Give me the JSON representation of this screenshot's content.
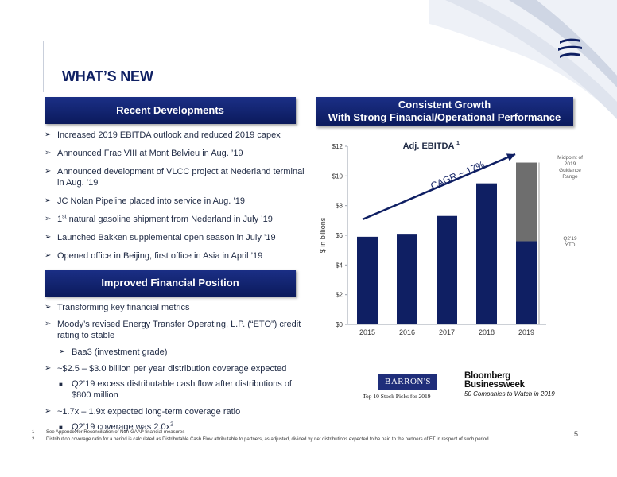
{
  "header": {
    "title": "WHAT’S NEW"
  },
  "recent": {
    "heading": "Recent Developments",
    "items": [
      "Increased 2019 EBITDA outlook and reduced 2019 capex",
      "Announced Frac VIII at Mont Belvieu in Aug. ’19",
      "Announced development of VLCC project at Nederland terminal in Aug. ’19",
      "JC Nolan Pipeline placed into service in Aug. ’19",
      "natural gasoline shipment from Nederland in July ’19",
      "Launched Bakken supplemental open season in July ’19",
      "Opened office in Beijing, first office in Asia in April ’19"
    ],
    "item5_prefix": "1",
    "item5_sup": "st"
  },
  "financial": {
    "heading": "Improved Financial Position",
    "items": [
      "Transforming key financial metrics",
      "Moody’s revised Energy Transfer Operating, L.P. (“ETO”) credit rating to stable",
      "Baa3 (investment grade)",
      "~$2.5 – $3.0 billion per year distribution coverage expected",
      "Q2’19 excess distributable cash flow after distributions of $800 million",
      "~1.7x – 1.9x expected long-term coverage ratio",
      "Q2’19 coverage was 2.0x"
    ],
    "last_sup": "2"
  },
  "growth": {
    "heading_line1": "Consistent Growth",
    "heading_line2": "With Strong Financial/Operational Performance"
  },
  "chart_data": {
    "type": "bar",
    "title": "Adj. EBITDA",
    "title_sup": "1",
    "ylabel": "$ in billions",
    "ylim": [
      0,
      12
    ],
    "yticks": [
      "$0",
      "$2",
      "$4",
      "$6",
      "$8",
      "$10",
      "$12"
    ],
    "categories": [
      "2015",
      "2016",
      "2017",
      "2018",
      "2019"
    ],
    "series": [
      {
        "name": "Q2’19 YTD",
        "values": [
          5.9,
          6.1,
          7.3,
          9.5,
          5.6
        ],
        "color": "#0f1f63"
      },
      {
        "name": "Midpoint of 2019 Guidance Range",
        "values": [
          0,
          0,
          0,
          0,
          5.3
        ],
        "color": "#6e6e6e"
      }
    ],
    "annotation": "CAGR ~ 17%",
    "label_midpoint": [
      "Midpoint of",
      "2019",
      "Guidance",
      "Range"
    ],
    "label_ytd": [
      "Q2’19",
      "YTD"
    ],
    "grid": false
  },
  "badges": {
    "barrons": "BARRON'S",
    "barrons_sub": "Top 10 Stock Picks for 2019",
    "bloomberg_line1": "Bloomberg",
    "bloomberg_line2": "Businessweek",
    "bloomberg_sub": "50 Companies to Watch in 2019"
  },
  "footnotes": [
    {
      "num": "1",
      "text": "See Appendix for Reconciliation of Non-GAAP financial measures"
    },
    {
      "num": "2",
      "text": "Distribution coverage ratio for a period is calculated as Distributable Cash Flow attributable to partners, as adjusted, divided by net distributions expected to be paid to the partners of ET in respect of such period"
    }
  ],
  "page_number": "5",
  "colors": {
    "navy": "#0f1f63",
    "gray": "#6e6e6e"
  }
}
